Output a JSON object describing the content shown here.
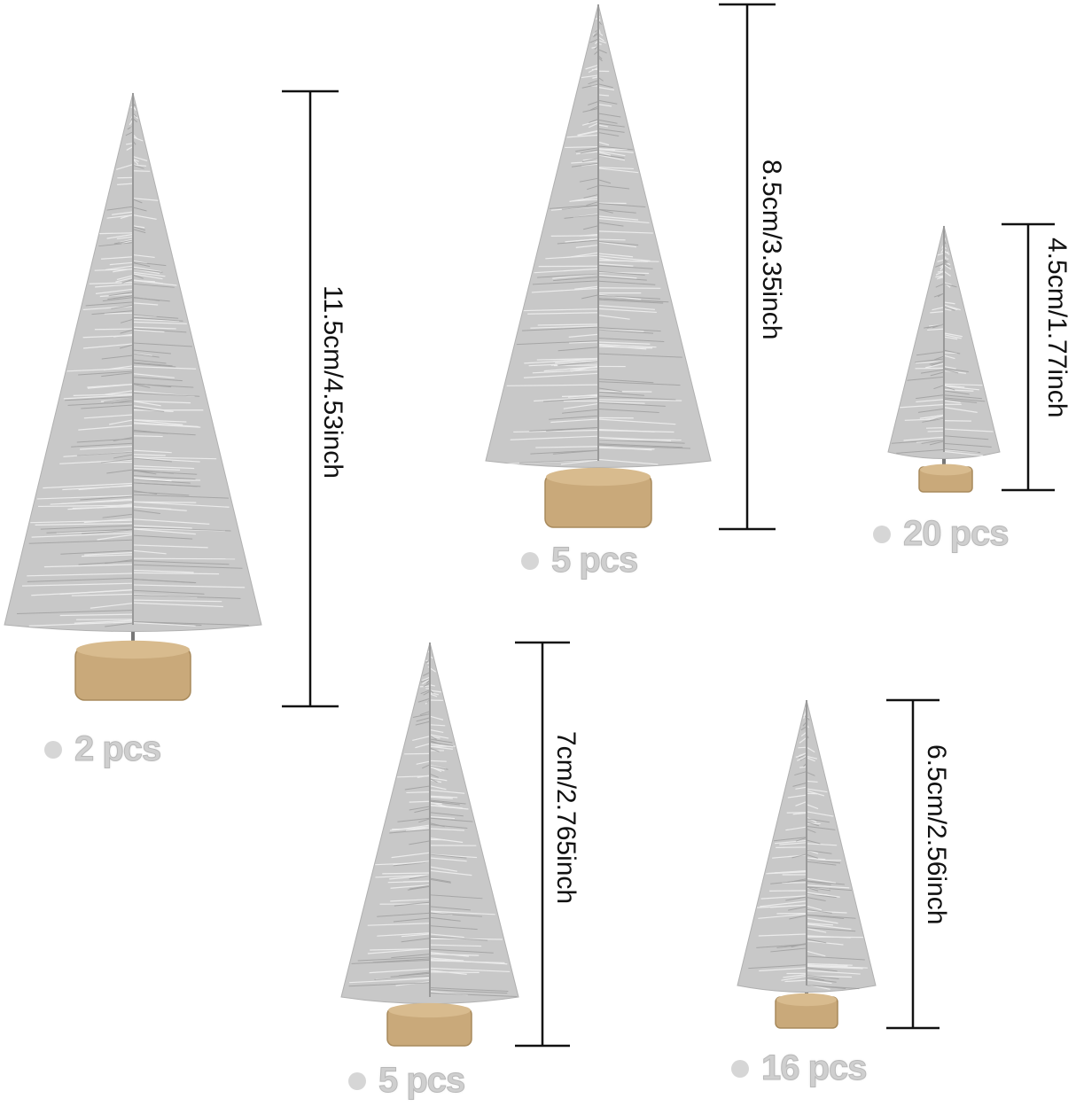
{
  "items": [
    {
      "size_label": "11.5cm/4.53inch",
      "qty_label": "2 pcs"
    },
    {
      "size_label": "8.5cm/3.35inch",
      "qty_label": "5 pcs"
    },
    {
      "size_label": "4.5cm/1.77inch",
      "qty_label": "20 pcs"
    },
    {
      "size_label": "7cm/2.765inch",
      "qty_label": "5 pcs"
    },
    {
      "size_label": "6.5cm/2.56inch",
      "qty_label": "16 pcs"
    }
  ],
  "colors": {
    "foliage": "#c8c8c8",
    "base": "#c9a97a",
    "ruler": "#111111",
    "label_gray": "#cfcfcf"
  }
}
